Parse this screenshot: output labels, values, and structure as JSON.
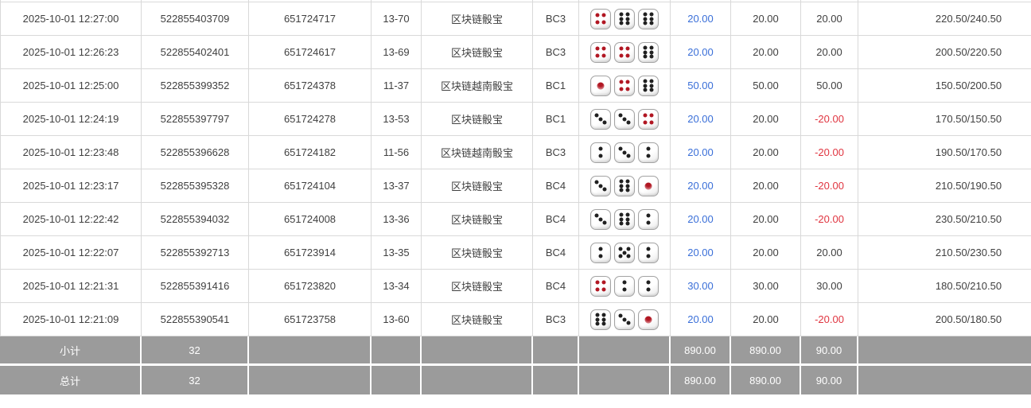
{
  "colors": {
    "amount_blue": "#3a6fd8",
    "negative_red": "#e03540",
    "summary_bg": "#9b9b9b",
    "row_border": "#d9d9d9",
    "text": "#404040",
    "pip_black": "#202020",
    "pip_red": "#b11622"
  },
  "table": {
    "rows": [
      {
        "time": "2025-10-01 12:27:00",
        "order_no": "522855403709",
        "round_no": "651724717",
        "period": "13-70",
        "game": "区块链骰宝",
        "table_code": "BC3",
        "dice": [
          4,
          6,
          6
        ],
        "bet": "20.00",
        "valid": "20.00",
        "winloss": "20.00",
        "balance": "220.50/240.50"
      },
      {
        "time": "2025-10-01 12:26:23",
        "order_no": "522855402401",
        "round_no": "651724617",
        "period": "13-69",
        "game": "区块链骰宝",
        "table_code": "BC3",
        "dice": [
          4,
          4,
          6
        ],
        "bet": "20.00",
        "valid": "20.00",
        "winloss": "20.00",
        "balance": "200.50/220.50"
      },
      {
        "time": "2025-10-01 12:25:00",
        "order_no": "522855399352",
        "round_no": "651724378",
        "period": "11-37",
        "game": "区块链越南骰宝",
        "table_code": "BC1",
        "dice": [
          1,
          4,
          6
        ],
        "bet": "50.00",
        "valid": "50.00",
        "winloss": "50.00",
        "balance": "150.50/200.50"
      },
      {
        "time": "2025-10-01 12:24:19",
        "order_no": "522855397797",
        "round_no": "651724278",
        "period": "13-53",
        "game": "区块链骰宝",
        "table_code": "BC1",
        "dice": [
          3,
          3,
          4
        ],
        "bet": "20.00",
        "valid": "20.00",
        "winloss": "-20.00",
        "balance": "170.50/150.50"
      },
      {
        "time": "2025-10-01 12:23:48",
        "order_no": "522855396628",
        "round_no": "651724182",
        "period": "11-56",
        "game": "区块链越南骰宝",
        "table_code": "BC3",
        "dice": [
          2,
          3,
          2
        ],
        "bet": "20.00",
        "valid": "20.00",
        "winloss": "-20.00",
        "balance": "190.50/170.50"
      },
      {
        "time": "2025-10-01 12:23:17",
        "order_no": "522855395328",
        "round_no": "651724104",
        "period": "13-37",
        "game": "区块链骰宝",
        "table_code": "BC4",
        "dice": [
          3,
          6,
          1
        ],
        "bet": "20.00",
        "valid": "20.00",
        "winloss": "-20.00",
        "balance": "210.50/190.50"
      },
      {
        "time": "2025-10-01 12:22:42",
        "order_no": "522855394032",
        "round_no": "651724008",
        "period": "13-36",
        "game": "区块链骰宝",
        "table_code": "BC4",
        "dice": [
          3,
          6,
          2
        ],
        "bet": "20.00",
        "valid": "20.00",
        "winloss": "-20.00",
        "balance": "230.50/210.50"
      },
      {
        "time": "2025-10-01 12:22:07",
        "order_no": "522855392713",
        "round_no": "651723914",
        "period": "13-35",
        "game": "区块链骰宝",
        "table_code": "BC4",
        "dice": [
          2,
          5,
          2
        ],
        "bet": "20.00",
        "valid": "20.00",
        "winloss": "20.00",
        "balance": "210.50/230.50"
      },
      {
        "time": "2025-10-01 12:21:31",
        "order_no": "522855391416",
        "round_no": "651723820",
        "period": "13-34",
        "game": "区块链骰宝",
        "table_code": "BC4",
        "dice": [
          4,
          2,
          2
        ],
        "bet": "30.00",
        "valid": "30.00",
        "winloss": "30.00",
        "balance": "180.50/210.50"
      },
      {
        "time": "2025-10-01 12:21:09",
        "order_no": "522855390541",
        "round_no": "651723758",
        "period": "13-60",
        "game": "区块链骰宝",
        "table_code": "BC3",
        "dice": [
          6,
          3,
          1
        ],
        "bet": "20.00",
        "valid": "20.00",
        "winloss": "-20.00",
        "balance": "200.50/180.50"
      }
    ],
    "subtotal": {
      "label": "小计",
      "count": "32",
      "bet": "890.00",
      "valid": "890.00",
      "winloss": "90.00"
    },
    "total": {
      "label": "总计",
      "count": "32",
      "bet": "890.00",
      "valid": "890.00",
      "winloss": "90.00"
    }
  }
}
